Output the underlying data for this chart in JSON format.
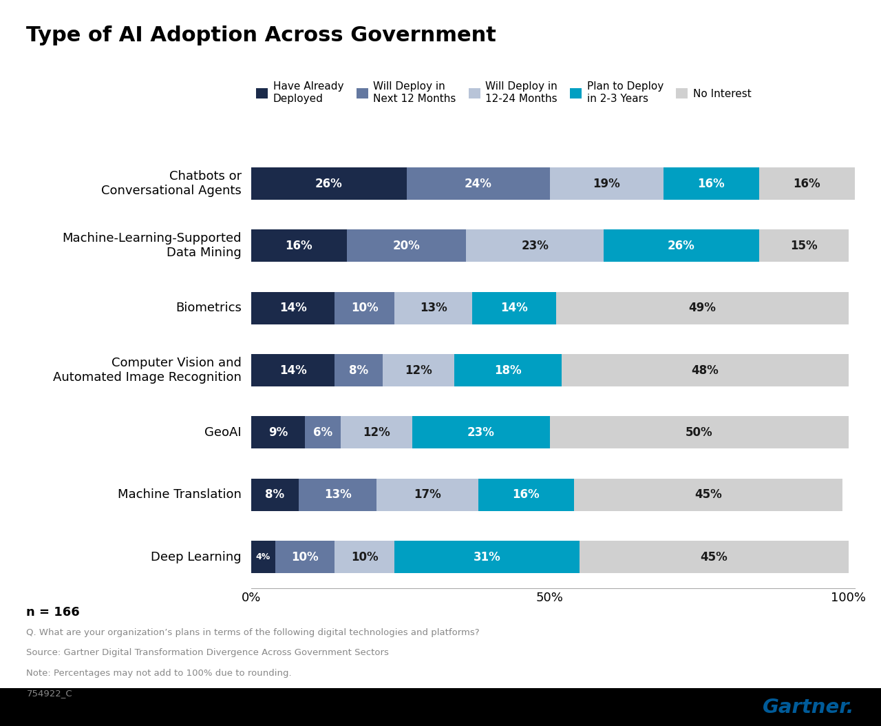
{
  "title": "Type of AI Adoption Across Government",
  "categories": [
    "Chatbots or\nConversational Agents",
    "Machine-Learning-Supported\nData Mining",
    "Biometrics",
    "Computer Vision and\nAutomated Image Recognition",
    "GeoAI",
    "Machine Translation",
    "Deep Learning"
  ],
  "series_labels": [
    "Have Already\nDeployed",
    "Will Deploy in\nNext 12 Months",
    "Will Deploy in\n12-24 Months",
    "Plan to Deploy\nin 2-3 Years",
    "No Interest"
  ],
  "data": [
    [
      26,
      24,
      19,
      16,
      16
    ],
    [
      16,
      20,
      23,
      26,
      15
    ],
    [
      14,
      10,
      13,
      14,
      49
    ],
    [
      14,
      8,
      12,
      18,
      48
    ],
    [
      9,
      6,
      12,
      23,
      50
    ],
    [
      8,
      13,
      17,
      16,
      45
    ],
    [
      4,
      10,
      10,
      31,
      45
    ]
  ],
  "colors": [
    "#1b2a4a",
    "#6478a0",
    "#b8c4d8",
    "#009fc2",
    "#d0d0d0"
  ],
  "bar_text_colors_by_series": [
    "#ffffff",
    "#ffffff",
    "#1a1a1a",
    "#ffffff",
    "#1a1a1a"
  ],
  "background_color": "#ffffff",
  "title_fontsize": 22,
  "bar_label_fontsize": 12,
  "tick_fontsize": 13,
  "legend_fontsize": 11,
  "note_text": "n = 166",
  "footer_lines": [
    "Q. What are your organization’s plans in terms of the following digital technologies and platforms?",
    "Source: Gartner Digital Transformation Divergence Across Government Sectors",
    "Note: Percentages may not add to 100% due to rounding.",
    "754922_C"
  ],
  "gartner_color": "#005b99",
  "footer_color": "#888888",
  "note_color": "#000000"
}
